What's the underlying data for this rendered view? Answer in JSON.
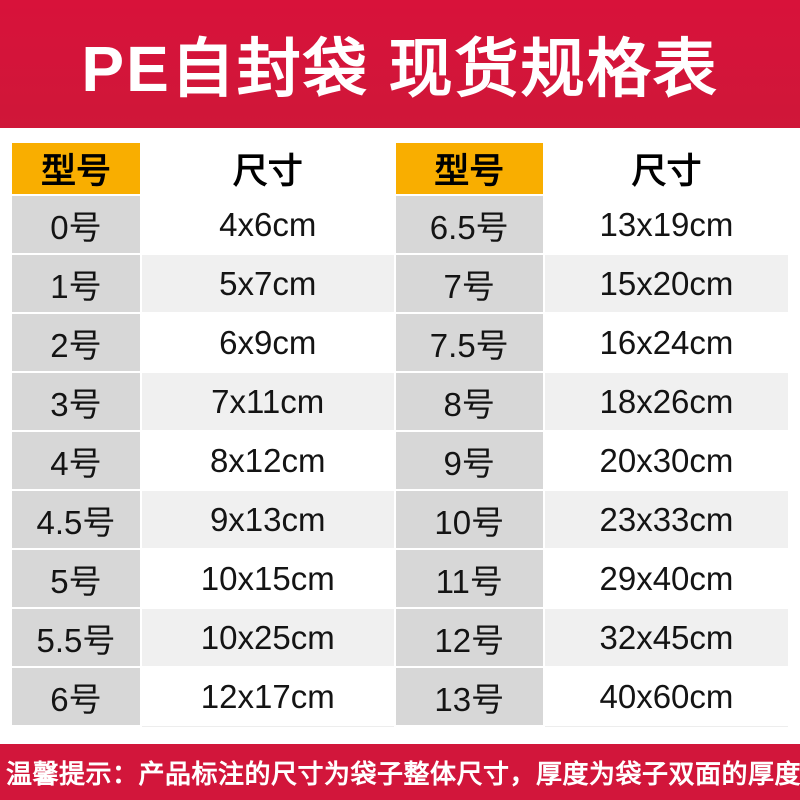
{
  "header": {
    "title": "PE自封袋 现货规格表"
  },
  "colors": {
    "banner_red": "#d2163b",
    "header_yellow": "#f9ae00",
    "model_cell_gray": "#d7d7d7",
    "alt_row_gray": "#f0f0f0",
    "text_black": "#111111",
    "banner_text_white": "#ffffff"
  },
  "chart_data": {
    "type": "table",
    "title": "PE自封袋 现货规格表",
    "columns": [
      "型号",
      "尺寸",
      "型号",
      "尺寸"
    ],
    "rows": [
      [
        "0号",
        "4x6cm",
        "6.5号",
        "13x19cm"
      ],
      [
        "1号",
        "5x7cm",
        "7号",
        "15x20cm"
      ],
      [
        "2号",
        "6x9cm",
        "7.5号",
        "16x24cm"
      ],
      [
        "3号",
        "7x11cm",
        "8号",
        "18x26cm"
      ],
      [
        "4号",
        "8x12cm",
        "9号",
        "20x30cm"
      ],
      [
        "4.5号",
        "9x13cm",
        "10号",
        "23x33cm"
      ],
      [
        "5号",
        "10x15cm",
        "11号",
        "29x40cm"
      ],
      [
        "5.5号",
        "10x25cm",
        "12号",
        "32x45cm"
      ],
      [
        "6号",
        "12x17cm",
        "13号",
        "40x60cm"
      ]
    ],
    "note": "温馨提示：产品标注的尺寸为袋子整体尺寸，厚度为袋子双面的厚度",
    "layout": {
      "grid": "off",
      "header_style": "model columns yellow, size columns white",
      "body_style": "model columns gray, size columns alternating white/light-gray"
    }
  },
  "footer": {
    "note": "温馨提示：产品标注的尺寸为袋子整体尺寸，厚度为袋子双面的厚度"
  }
}
